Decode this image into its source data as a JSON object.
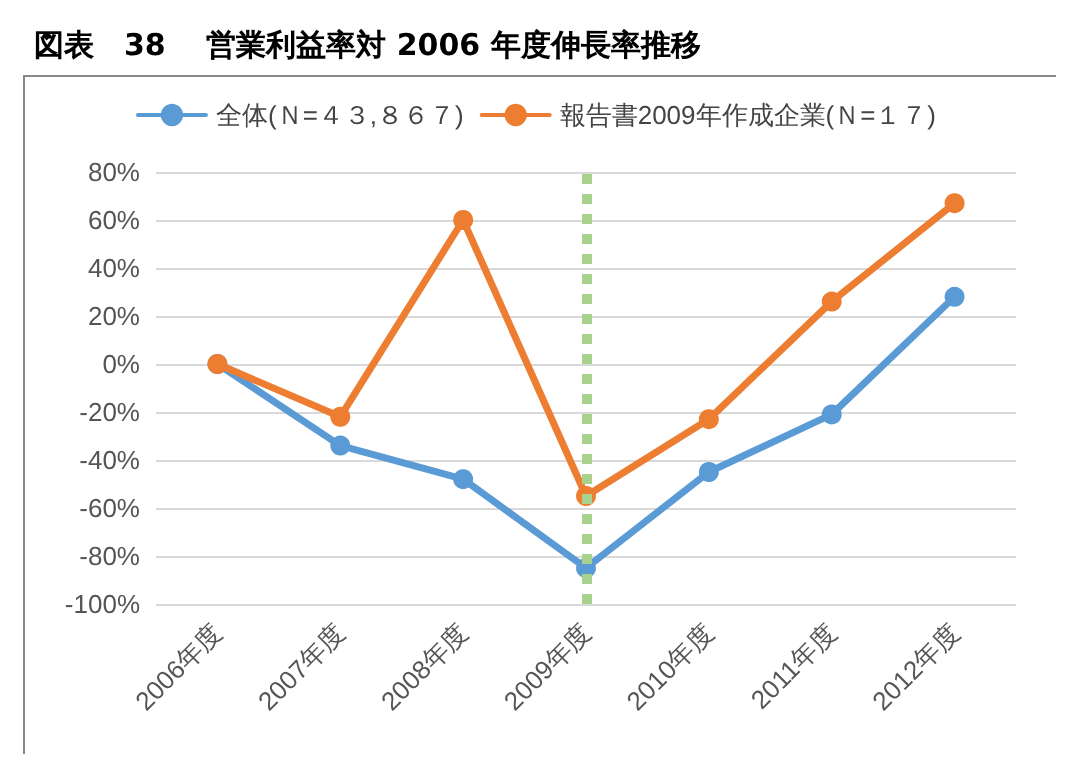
{
  "chart_data": {
    "type": "line",
    "title": "図表　38　 営業利益率対 2006 年度伸長率推移",
    "categories": [
      "2006年度",
      "2007年度",
      "2008年度",
      "2009年度",
      "2010年度",
      "2011年度",
      "2012年度"
    ],
    "series": [
      {
        "name": "全体(Ｎ=４３,８６７)",
        "color": "#5b9bd5",
        "values": [
          0,
          -34,
          -48,
          -85,
          -45,
          -21,
          28
        ]
      },
      {
        "name": "報告書2009年作成企業(Ｎ=１７)",
        "color": "#ed7d31",
        "values": [
          0,
          -22,
          60,
          -55,
          -23,
          26,
          67
        ]
      }
    ],
    "ylim": [
      -100,
      80
    ],
    "yticks": [
      {
        "value": -100,
        "label": "-100%"
      },
      {
        "value": -80,
        "label": "-80%"
      },
      {
        "value": -60,
        "label": "-60%"
      },
      {
        "value": -40,
        "label": "-40%"
      },
      {
        "value": -20,
        "label": "-20%"
      },
      {
        "value": 0,
        "label": "0%"
      },
      {
        "value": 20,
        "label": "20%"
      },
      {
        "value": 40,
        "label": "40%"
      },
      {
        "value": 60,
        "label": "60%"
      },
      {
        "value": 80,
        "label": "80%"
      }
    ],
    "ref_lines": [
      {
        "axis": "x",
        "value": "2009年度",
        "color": "#a9d18e",
        "line_style": "dotted"
      }
    ],
    "grid": "y",
    "legend": "top",
    "marker": "circle",
    "line_style": "solid"
  }
}
